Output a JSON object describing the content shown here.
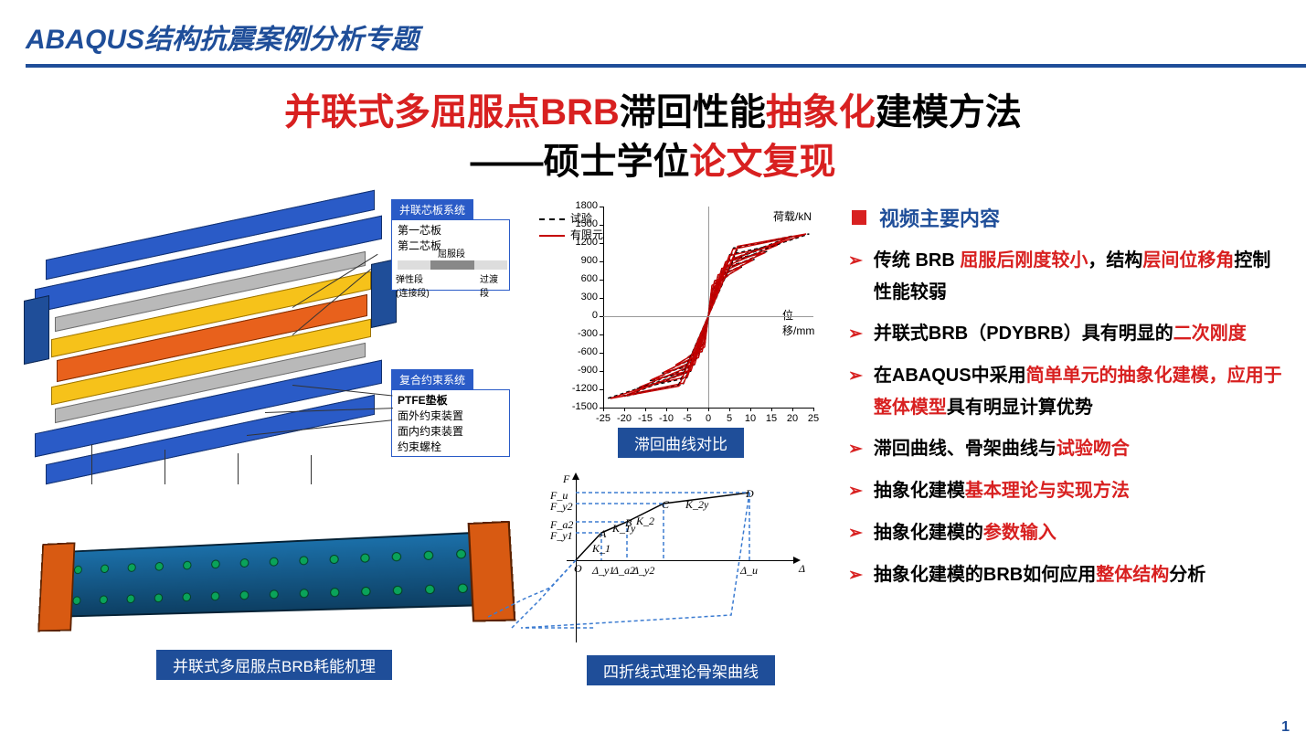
{
  "header": {
    "title": "ABAQUS结构抗震案例分析专题"
  },
  "title": {
    "line1": {
      "parts": [
        {
          "t": "并联式多屈服点",
          "c": "red"
        },
        {
          "t": "BRB",
          "c": "red"
        },
        {
          "t": "滞回性能",
          "c": "blk"
        },
        {
          "t": "抽象化",
          "c": "red"
        },
        {
          "t": "建模方法",
          "c": "blk"
        }
      ]
    },
    "line2": {
      "parts": [
        {
          "t": "——硕士学位",
          "c": "blk"
        },
        {
          "t": "论文复现",
          "c": "red"
        }
      ]
    }
  },
  "figures": {
    "exploded": {
      "sys1_title": "并联芯板系统",
      "sys1_items": [
        "第一芯板",
        "第二芯板"
      ],
      "seg_labels": {
        "yield": "屈服段",
        "elastic": "弹性段\n(连接段)",
        "trans": "过渡段"
      },
      "sys2_title": "复合约束系统",
      "sys2_items": [
        "PTFE垫板",
        "面外约束装置",
        "面内约束装置",
        "约束螺栓"
      ],
      "plate_colors": {
        "outer": "#2a5bc7",
        "mid": "#f6c21a",
        "core": "#e8611c",
        "spacer": "#b9b9b9"
      }
    },
    "assembled": {
      "caption": "并联式多屈服点BRB耗能机理",
      "beam_color": "#1b6fa8",
      "end_color": "#d85a12",
      "bolt_color": "#0aa35a"
    },
    "hysteresis": {
      "caption": "滞回曲线对比",
      "legend": {
        "test": "试验",
        "fem": "有限元"
      },
      "y_title": "荷载/kN",
      "x_title": "位移/mm",
      "y_ticks": [
        -1500,
        -1200,
        -900,
        -600,
        -300,
        0,
        300,
        600,
        900,
        1200,
        1500,
        1800
      ],
      "x_ticks": [
        -25,
        -20,
        -15,
        -10,
        -5,
        0,
        5,
        10,
        15,
        20,
        25
      ],
      "ylim": [
        -1500,
        1800
      ],
      "xlim": [
        -25,
        25
      ],
      "colors": {
        "test": "#000000",
        "fem": "#c40000"
      },
      "loops_amp_mm": [
        3,
        5,
        8,
        11,
        14,
        17,
        20,
        24
      ],
      "force_peak_kN": 1350
    },
    "skeleton": {
      "caption": "四折线式理论骨架曲线",
      "y_axis_label": "F",
      "x_axis_label": "Δ",
      "y_points": [
        "F_u",
        "F_y2",
        "F_a2",
        "F_y1"
      ],
      "x_points": [
        "Δ_y1",
        "Δ_a2",
        "Δ_y2",
        "Δ_u"
      ],
      "node_labels": [
        "O",
        "A",
        "B",
        "C",
        "D"
      ],
      "slope_labels": [
        "K_1",
        "K_1y",
        "K_2",
        "K_2y"
      ],
      "dash_color": "#3b7bd1",
      "solid_color": "#000000"
    }
  },
  "right": {
    "section_title": "视频主要内容",
    "bullets": [
      [
        {
          "t": "传统 ",
          "c": "b"
        },
        {
          "t": "BRB ",
          "c": "b"
        },
        {
          "t": "屈服后刚度较小",
          "c": "r"
        },
        {
          "t": "，结构",
          "c": "b"
        },
        {
          "t": "层间位移角",
          "c": "r"
        },
        {
          "t": "控制性能较弱",
          "c": "b"
        }
      ],
      [
        {
          "t": "并联式BRB（PDYBRB）具有明显的",
          "c": "b"
        },
        {
          "t": "二次刚度",
          "c": "r"
        }
      ],
      [
        {
          "t": "在ABAQUS中采用",
          "c": "b"
        },
        {
          "t": "简单单元的抽象化建模，应用于整体模型",
          "c": "r"
        },
        {
          "t": "具有明显计算优势",
          "c": "b"
        }
      ],
      [
        {
          "t": "滞回曲线、骨架曲线与",
          "c": "b"
        },
        {
          "t": "试验吻合",
          "c": "r"
        }
      ],
      [
        {
          "t": "抽象化建模",
          "c": "b"
        },
        {
          "t": "基本理论与实现方法",
          "c": "r"
        }
      ],
      [
        {
          "t": "抽象化建模的",
          "c": "b"
        },
        {
          "t": "参数输入",
          "c": "r"
        }
      ],
      [
        {
          "t": "抽象化建模的BRB如何应用",
          "c": "b"
        },
        {
          "t": "整体结构",
          "c": "r"
        },
        {
          "t": "分析",
          "c": "b"
        }
      ]
    ]
  },
  "page_number": "1",
  "colors": {
    "brand": "#1f4e99",
    "accent": "#d82020",
    "text": "#000000"
  }
}
